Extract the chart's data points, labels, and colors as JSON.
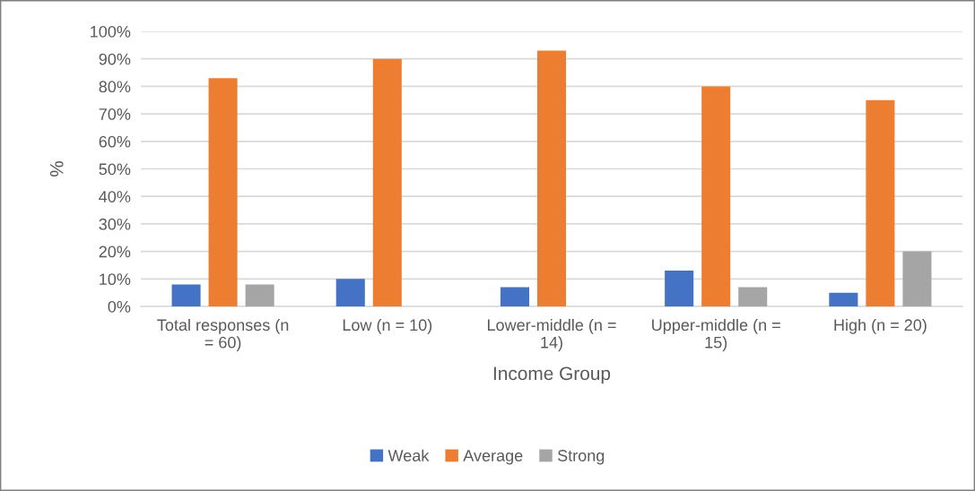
{
  "chart_data": {
    "type": "bar",
    "xlabel": "Income Group",
    "ylabel": "%",
    "categories": [
      "Total responses (n\n= 60)",
      "Low (n = 10)",
      "Lower-middle (n =\n14)",
      "Upper-middle (n =\n15)",
      "High (n = 20)"
    ],
    "series": [
      {
        "name": "Weak",
        "color": "#4472c4",
        "values": [
          8,
          10,
          7,
          13,
          5
        ]
      },
      {
        "name": "Average",
        "color": "#ed7d31",
        "values": [
          83,
          90,
          93,
          80,
          75
        ]
      },
      {
        "name": "Strong",
        "color": "#a5a5a5",
        "values": [
          8,
          0,
          0,
          7,
          20
        ]
      }
    ],
    "ylim": [
      0,
      100
    ],
    "yticks": [
      {
        "value": 0,
        "label": "0%"
      },
      {
        "value": 10,
        "label": "10%"
      },
      {
        "value": 20,
        "label": "20%"
      },
      {
        "value": 30,
        "label": "30%"
      },
      {
        "value": 40,
        "label": "40%"
      },
      {
        "value": 50,
        "label": "50%"
      },
      {
        "value": 60,
        "label": "60%"
      },
      {
        "value": 70,
        "label": "70%"
      },
      {
        "value": 80,
        "label": "80%"
      },
      {
        "value": 90,
        "label": "90%"
      },
      {
        "value": 100,
        "label": "100%"
      }
    ],
    "grid": "y",
    "legend": "bottom"
  }
}
